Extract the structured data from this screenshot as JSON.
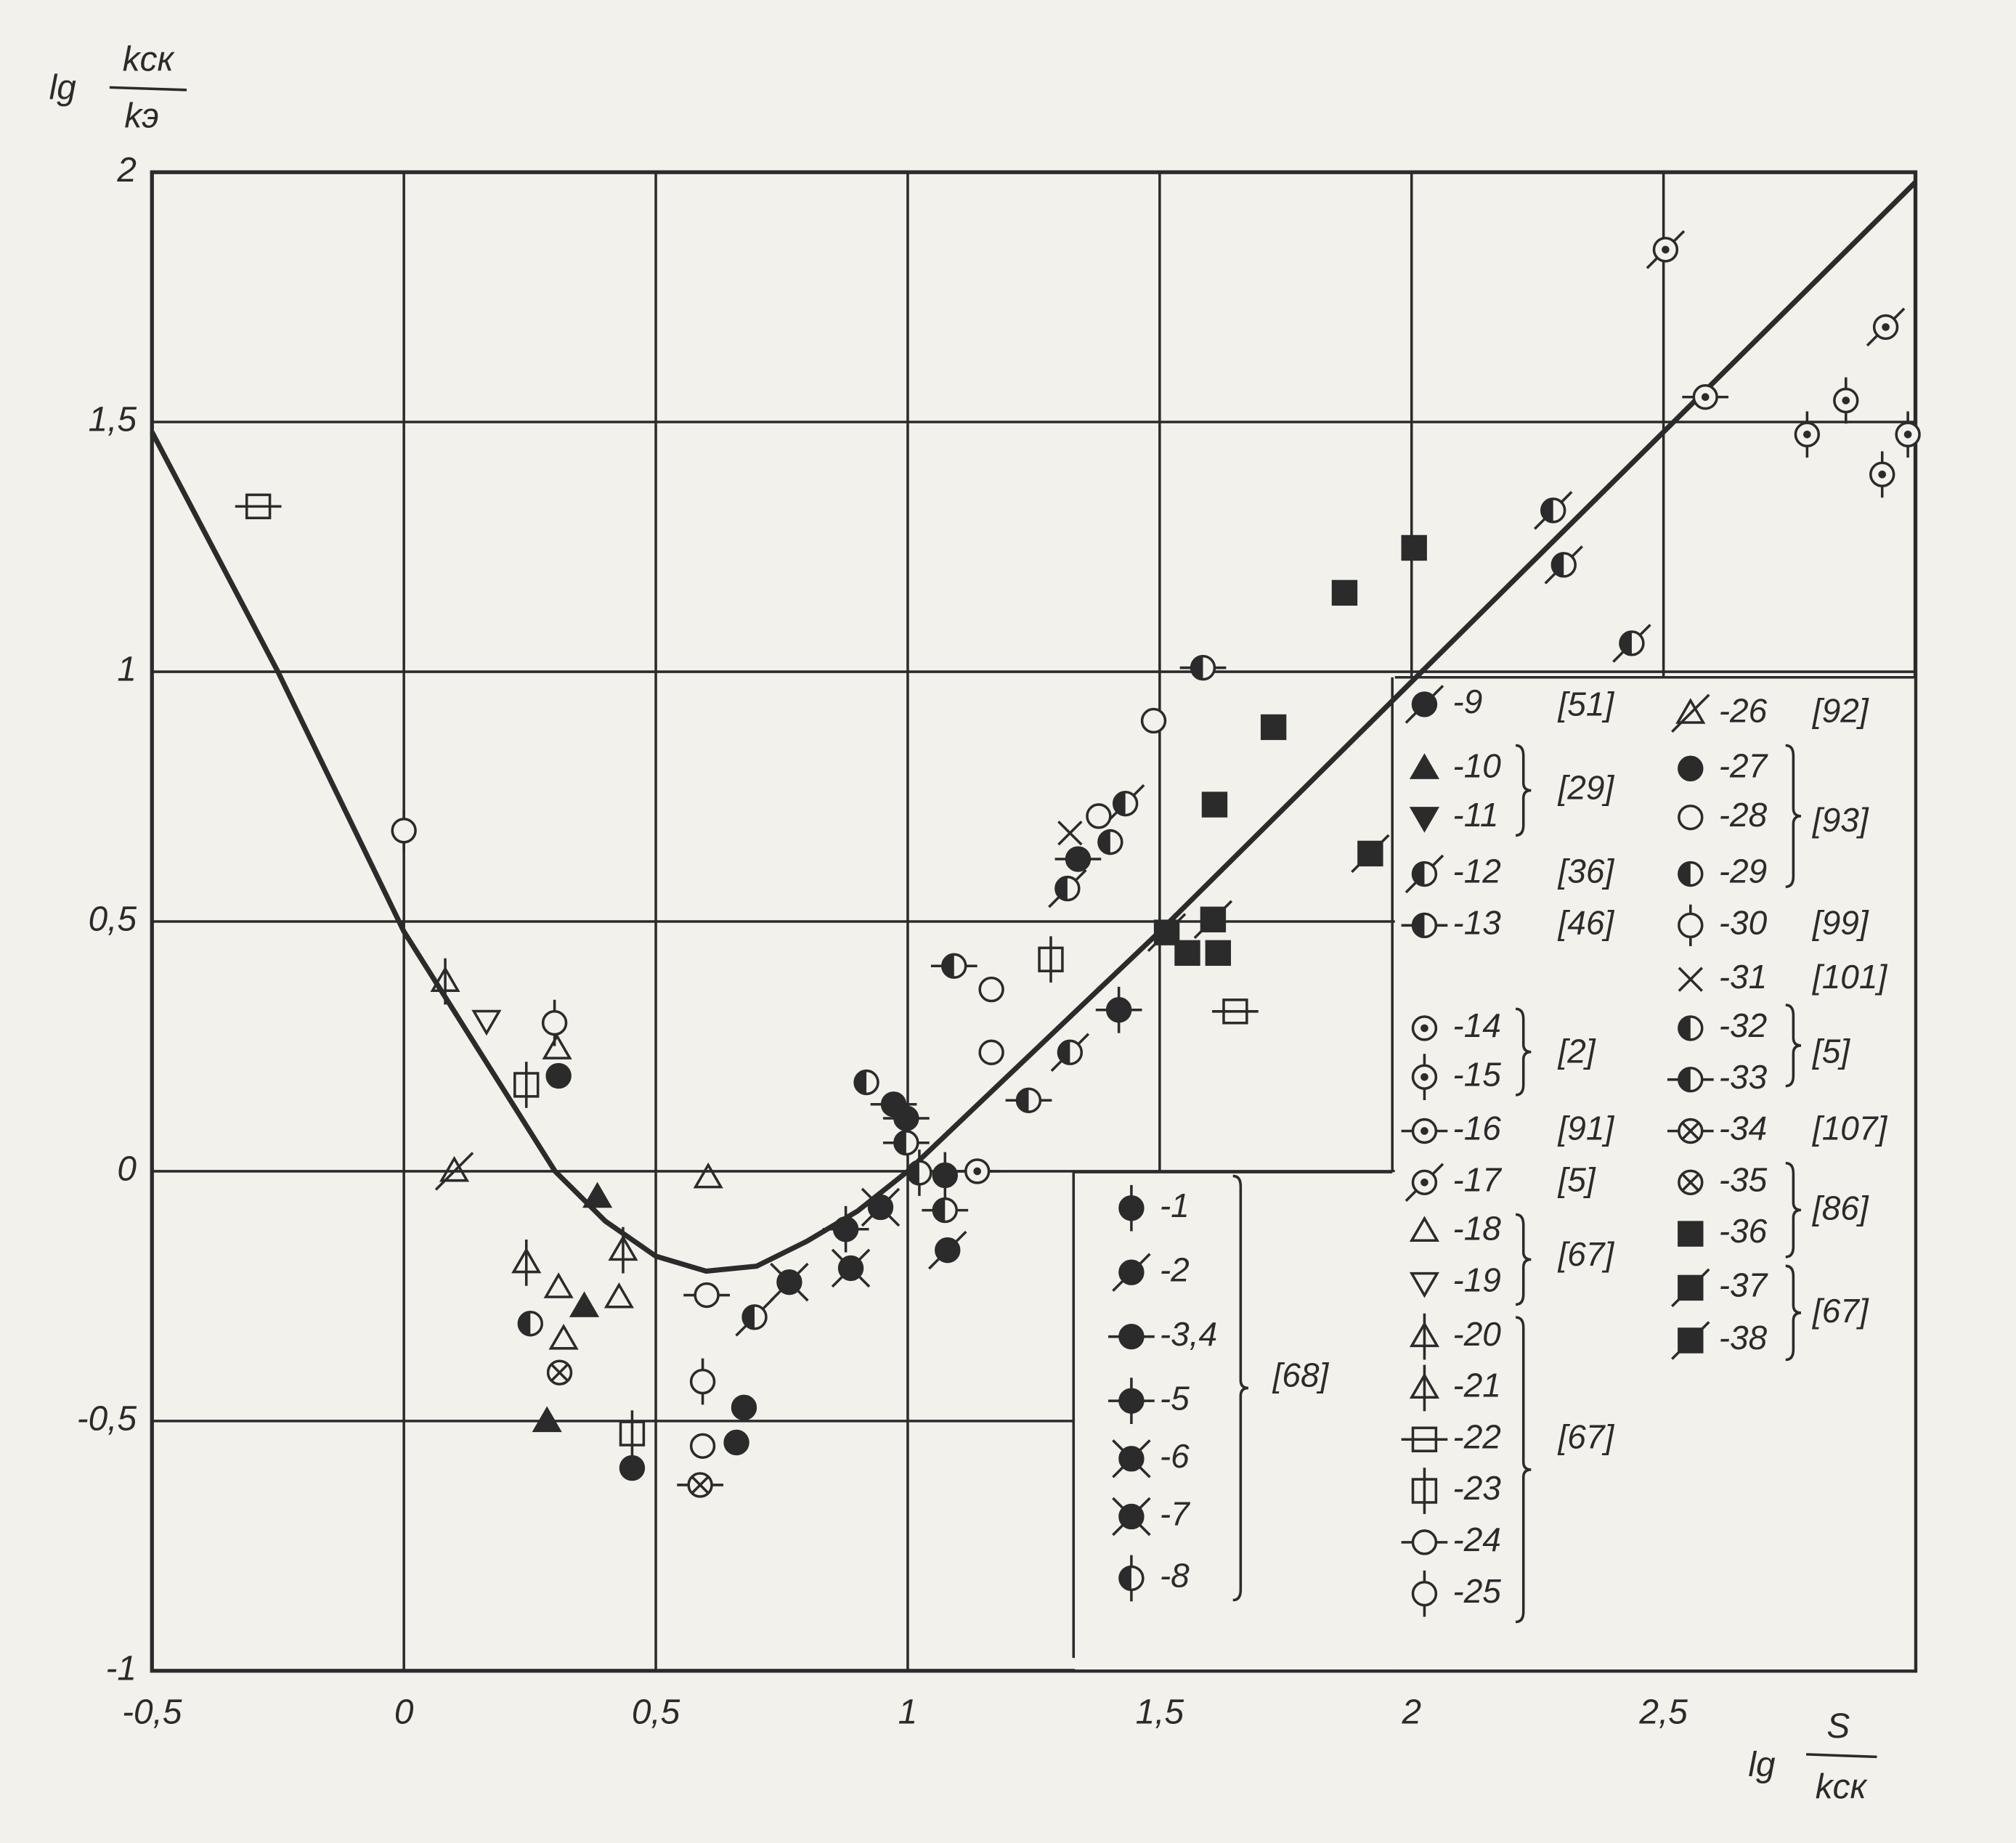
{
  "chart_data": {
    "type": "scatter",
    "color": "#2b2b2b",
    "grid": true,
    "ylabel": {
      "prefix": "lg",
      "numerator": "kск",
      "denominator": "kэ"
    },
    "xlabel": {
      "prefix": "lg",
      "numerator": "S",
      "denominator": "kск"
    },
    "xlim": [
      -0.5,
      3.0
    ],
    "ylim": [
      -1,
      2
    ],
    "xticks": [
      {
        "value": -0.5,
        "label": "-0,5"
      },
      0,
      {
        "value": 0.5,
        "label": "0,5"
      },
      1,
      {
        "value": 1.5,
        "label": "1,5"
      },
      2,
      {
        "value": 2.5,
        "label": "2,5"
      }
    ],
    "yticks": [
      -1,
      {
        "value": -0.5,
        "label": "-0,5"
      },
      0,
      {
        "value": 0.5,
        "label": "0,5"
      },
      1,
      {
        "value": 1.5,
        "label": "1,5"
      },
      2
    ],
    "curve": {
      "x": [
        -0.5,
        -0.25,
        0,
        0.1,
        0.2,
        0.3,
        0.4,
        0.5,
        0.6,
        0.7,
        0.8,
        0.9,
        1.0,
        1.5,
        2.0,
        2.5,
        3.0
      ],
      "values": [
        1.48,
        1.0,
        0.48,
        0.32,
        0.16,
        0.0,
        -0.1,
        -0.17,
        -0.2,
        -0.19,
        -0.14,
        -0.08,
        0.0,
        0.48,
        0.98,
        1.48,
        1.98
      ]
    },
    "series": [
      {
        "name": "-1",
        "marker": {
          "shape": "filled-circle",
          "line": "vertical"
        },
        "x": [
          1.074
        ],
        "values": [
          -0.008
        ]
      },
      {
        "name": "-2",
        "marker": {
          "shape": "filled-circle",
          "line": "slash"
        },
        "x": [
          1.079
        ],
        "values": [
          -0.158
        ]
      },
      {
        "name": "-3,4",
        "marker": {
          "shape": "filled-circle",
          "line": "horizontal"
        },
        "x": [
          0.972,
          0.997,
          1.338
        ],
        "values": [
          0.134,
          0.106,
          0.625
        ]
      },
      {
        "name": "-5",
        "marker": {
          "shape": "filled-circle",
          "line": "plus"
        },
        "x": [
          0.877,
          1.419
        ],
        "values": [
          -0.116,
          0.323
        ]
      },
      {
        "name": "-6",
        "marker": {
          "shape": "filled-circle",
          "line": "x"
        },
        "x": [
          0.887
        ],
        "values": [
          -0.194
        ]
      },
      {
        "name": "-7",
        "marker": {
          "shape": "filled-circle",
          "line": "x"
        },
        "x": [
          0.765,
          0.946
        ],
        "values": [
          -0.222,
          -0.072
        ]
      },
      {
        "name": "-8",
        "marker": {
          "shape": "half-circle",
          "line": "vertical"
        },
        "x": [
          1.023
        ],
        "values": [
          -0.003
        ]
      },
      {
        "name": "-9",
        "marker": {
          "shape": "filled-circle",
          "line": "slash"
        },
        "x": [],
        "values": []
      },
      {
        "name": "-10",
        "marker": {
          "shape": "filled-triangle",
          "line": "none"
        },
        "x": [
          0.384,
          0.358,
          0.284
        ],
        "values": [
          -0.052,
          -0.271,
          -0.501
        ]
      },
      {
        "name": "-11",
        "marker": {
          "shape": "filled-down-triangle",
          "line": "none"
        },
        "x": [],
        "values": []
      },
      {
        "name": "-12",
        "marker": {
          "shape": "half-circle",
          "line": "slash"
        },
        "x": [
          0.696,
          1.322,
          1.317,
          1.432,
          2.281,
          2.302,
          2.437
        ],
        "values": [
          -0.292,
          0.238,
          0.566,
          0.736,
          1.323,
          1.214,
          1.057
        ]
      },
      {
        "name": "-13",
        "marker": {
          "shape": "half-circle",
          "line": "horizontal"
        },
        "x": [
          0.997,
          1.074,
          1.092,
          1.24,
          1.586
        ],
        "values": [
          0.057,
          -0.078,
          0.411,
          0.142,
          1.008
        ]
      },
      {
        "name": "-14",
        "marker": {
          "shape": "dot-circle",
          "line": "none"
        },
        "x": [],
        "values": []
      },
      {
        "name": "-15",
        "marker": {
          "shape": "dot-circle",
          "line": "vertical"
        },
        "x": [
          2.785,
          2.862,
          2.985,
          2.934
        ],
        "values": [
          1.475,
          1.543,
          1.475,
          1.395
        ]
      },
      {
        "name": "-16",
        "marker": {
          "shape": "dot-circle",
          "line": "horizontal"
        },
        "x": [
          1.138,
          2.583
        ],
        "values": [
          0.0,
          1.55
        ]
      },
      {
        "name": "-17",
        "marker": {
          "shape": "dot-circle",
          "line": "slash"
        },
        "x": [
          2.504,
          2.941
        ],
        "values": [
          1.845,
          1.69
        ]
      },
      {
        "name": "-18",
        "marker": {
          "shape": "open-triangle",
          "line": "none"
        },
        "x": [
          0.304,
          0.307,
          0.317,
          0.427,
          0.604
        ],
        "values": [
          0.245,
          -0.233,
          -0.336,
          -0.253,
          -0.013
        ]
      },
      {
        "name": "-19",
        "marker": {
          "shape": "open-down-triangle",
          "line": "none"
        },
        "x": [
          0.164
        ],
        "values": [
          0.302
        ]
      },
      {
        "name": "-20",
        "marker": {
          "shape": "open-triangle",
          "line": "vertical"
        },
        "x": [
          0.082
        ],
        "values": [
          0.38
        ]
      },
      {
        "name": "-21",
        "marker": {
          "shape": "open-triangle",
          "line": "vertical"
        },
        "x": [
          0.243,
          0.435
        ],
        "values": [
          -0.183,
          -0.158
        ]
      },
      {
        "name": "-22",
        "marker": {
          "shape": "open-square",
          "line": "horizontal"
        },
        "x": [
          -0.289,
          1.65
        ],
        "values": [
          1.331,
          0.32
        ]
      },
      {
        "name": "-23",
        "marker": {
          "shape": "open-square",
          "line": "vertical"
        },
        "x": [
          0.243,
          0.453,
          1.284
        ],
        "values": [
          0.173,
          -0.525,
          0.424
        ]
      },
      {
        "name": "-24",
        "marker": {
          "shape": "open-circle",
          "line": "horizontal"
        },
        "x": [
          0.601
        ],
        "values": [
          -0.248
        ]
      },
      {
        "name": "-25",
        "marker": {
          "shape": "open-circle",
          "line": "vertical"
        },
        "x": [
          0.299,
          0.593
        ],
        "values": [
          0.297,
          -0.421
        ]
      },
      {
        "name": "-26",
        "marker": {
          "shape": "open-triangle",
          "line": "slash"
        },
        "x": [
          0.1
        ],
        "values": [
          0.0
        ]
      },
      {
        "name": "-27",
        "marker": {
          "shape": "filled-circle",
          "line": "none"
        },
        "x": [
          0.307,
          0.453,
          0.675,
          0.66
        ],
        "values": [
          0.191,
          -0.594,
          -0.473,
          -0.543
        ]
      },
      {
        "name": "-28",
        "marker": {
          "shape": "open-circle",
          "line": "none"
        },
        "x": [
          0.593,
          1.166,
          1.166,
          1.379,
          1.488
        ],
        "values": [
          -0.55,
          0.364,
          0.238,
          0.711,
          0.902
        ]
      },
      {
        "name": "-29",
        "marker": {
          "shape": "half-circle",
          "line": "none"
        },
        "x": [
          0.251,
          1.402
        ],
        "values": [
          -0.305,
          0.659
        ]
      },
      {
        "name": "-30",
        "marker": {
          "shape": "open-circle",
          "line": "phi"
        },
        "x": [
          0
        ],
        "values": [
          0.682
        ]
      },
      {
        "name": "-31",
        "marker": {
          "shape": "x",
          "line": "none"
        },
        "x": [
          1.322
        ],
        "values": [
          0.677
        ]
      },
      {
        "name": "-32",
        "marker": {
          "shape": "half-circle",
          "line": "none"
        },
        "x": [
          0.918
        ],
        "values": [
          0.178
        ]
      },
      {
        "name": "-33",
        "marker": {
          "shape": "half-circle",
          "line": "horizontal"
        },
        "x": [],
        "values": []
      },
      {
        "name": "-34",
        "marker": {
          "shape": "crossed-circle",
          "line": "horizontal"
        },
        "x": [
          0.588
        ],
        "values": [
          -0.628
        ]
      },
      {
        "name": "-35",
        "marker": {
          "shape": "crossed-circle",
          "line": "none"
        },
        "x": [
          0.309
        ],
        "values": [
          -0.403
        ]
      },
      {
        "name": "-36",
        "marker": {
          "shape": "filled-square",
          "line": "none"
        },
        "x": [
          1.555,
          1.616,
          1.609,
          1.726,
          1.867,
          2.005
        ],
        "values": [
          0.437,
          0.437,
          0.734,
          0.889,
          1.158,
          1.248
        ]
      },
      {
        "name": "-37",
        "marker": {
          "shape": "filled-square",
          "line": "slash"
        },
        "x": [
          1.514,
          1.606
        ],
        "values": [
          0.478,
          0.504
        ]
      },
      {
        "name": "-38",
        "marker": {
          "shape": "filled-square",
          "line": "slash"
        },
        "x": [
          1.918
        ],
        "values": [
          0.636
        ]
      }
    ],
    "references": [
      "[68]",
      "[51]",
      "[29]",
      "[36]",
      "[46]",
      "[2]",
      "[91]",
      "[5]",
      "[67]",
      "[67]",
      "[92]",
      "[93]",
      "[99]",
      "[101]",
      "[5]",
      "[107]",
      "[86]",
      "[67]"
    ]
  }
}
